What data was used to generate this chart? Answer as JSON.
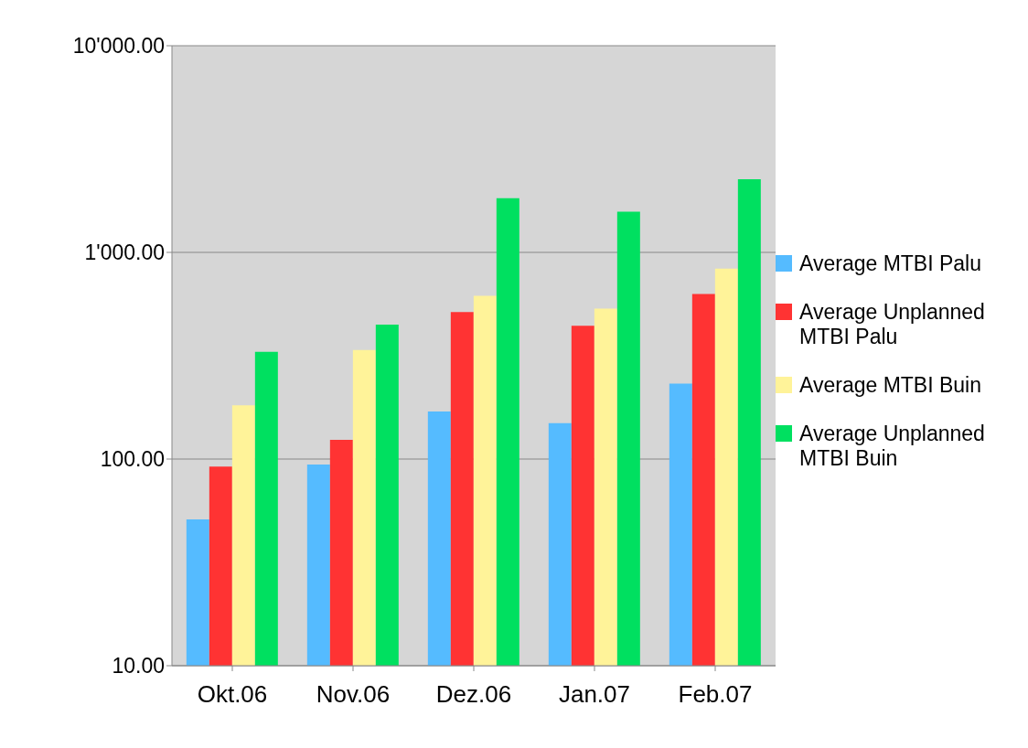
{
  "chart_data": {
    "type": "bar",
    "categories": [
      "Okt.06",
      "Nov.06",
      "Dez.06",
      "Jan.07",
      "Feb.07"
    ],
    "series": [
      {
        "name": "Average MTBI Palu",
        "color": "#55bbff",
        "values": [
          51,
          94,
          170,
          149,
          232
        ]
      },
      {
        "name": "Average Unplanned MTBI Palu",
        "color": "#ff3333",
        "values": [
          92,
          124,
          514,
          442,
          629
        ]
      },
      {
        "name": "Average MTBI Buin",
        "color": "#fff399",
        "values": [
          182,
          337,
          617,
          535,
          834
        ]
      },
      {
        "name": "Average Unplanned MTBI Buin",
        "color": "#00e060",
        "values": [
          330,
          447,
          1830,
          1574,
          2262
        ]
      }
    ],
    "log": true,
    "ylim": [
      10,
      10000
    ],
    "yticks": [
      {
        "value": 10,
        "label": "10.00"
      },
      {
        "value": 100,
        "label": "100.00"
      },
      {
        "value": 1000,
        "label": "1'000.00"
      },
      {
        "value": 10000,
        "label": "10'000.00"
      }
    ],
    "grid": "y",
    "legend": "right"
  }
}
